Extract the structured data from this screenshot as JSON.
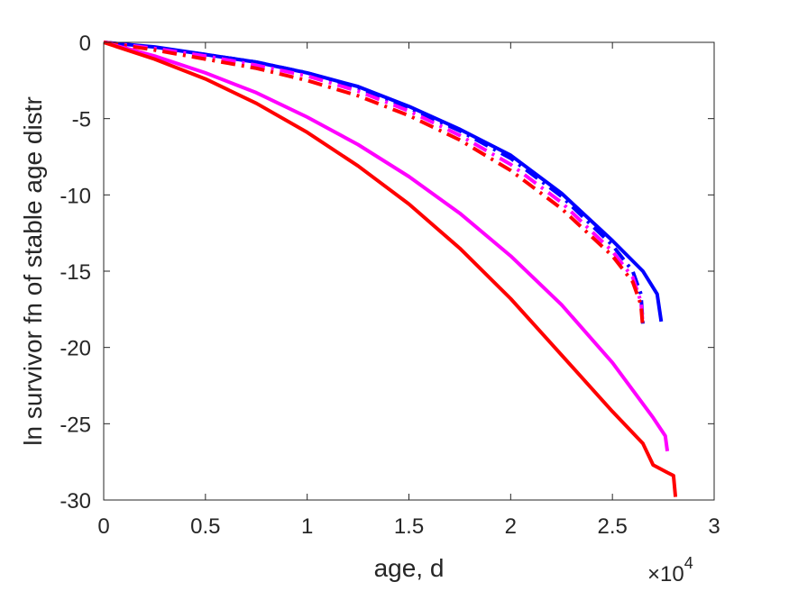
{
  "chart_data": {
    "type": "line",
    "xlabel": "age, d",
    "ylabel": "ln survivor fn of stable age distr",
    "x_multiplier": {
      "base": "×10",
      "exponent": "4"
    },
    "xlim": [
      0,
      3
    ],
    "ylim": [
      -30,
      0
    ],
    "xticks": [
      "0",
      "0.5",
      "1",
      "1.5",
      "2",
      "2.5",
      "3"
    ],
    "yticks": [
      "0",
      "-5",
      "-10",
      "-15",
      "-20",
      "-25",
      "-30"
    ],
    "grid": false,
    "legend": "none",
    "series": [
      {
        "color": "#0000ff",
        "style": "solid",
        "points": [
          [
            0,
            0
          ],
          [
            0.25,
            -0.3
          ],
          [
            0.5,
            -0.8
          ],
          [
            0.75,
            -1.3
          ],
          [
            1.0,
            -2.0
          ],
          [
            1.25,
            -2.9
          ],
          [
            1.5,
            -4.2
          ],
          [
            1.75,
            -5.7
          ],
          [
            2.0,
            -7.4
          ],
          [
            2.25,
            -9.9
          ],
          [
            2.5,
            -13.0
          ],
          [
            2.65,
            -15.0
          ],
          [
            2.72,
            -16.5
          ],
          [
            2.74,
            -18.3
          ]
        ]
      },
      {
        "color": "#0000ff",
        "style": "dashdot",
        "points": [
          [
            0,
            0
          ],
          [
            0.25,
            -0.35
          ],
          [
            0.5,
            -0.8
          ],
          [
            0.75,
            -1.3
          ],
          [
            1.0,
            -2.0
          ],
          [
            1.25,
            -3.0
          ],
          [
            1.5,
            -4.3
          ],
          [
            1.75,
            -5.8
          ],
          [
            2.0,
            -7.6
          ],
          [
            2.25,
            -10.1
          ],
          [
            2.5,
            -13.3
          ],
          [
            2.6,
            -15.0
          ],
          [
            2.64,
            -16.5
          ],
          [
            2.65,
            -18.5
          ]
        ]
      },
      {
        "color": "#ff00ff",
        "style": "dashdot",
        "points": [
          [
            0,
            0
          ],
          [
            0.25,
            -0.4
          ],
          [
            0.5,
            -0.9
          ],
          [
            0.75,
            -1.5
          ],
          [
            1.0,
            -2.2
          ],
          [
            1.25,
            -3.2
          ],
          [
            1.5,
            -4.5
          ],
          [
            1.75,
            -6.1
          ],
          [
            2.0,
            -8.0
          ],
          [
            2.25,
            -10.5
          ],
          [
            2.5,
            -13.7
          ],
          [
            2.6,
            -15.4
          ],
          [
            2.64,
            -17.0
          ],
          [
            2.65,
            -18.5
          ]
        ]
      },
      {
        "color": "#ff0000",
        "style": "dashdot",
        "points": [
          [
            0,
            0
          ],
          [
            0.25,
            -0.5
          ],
          [
            0.5,
            -1.1
          ],
          [
            0.75,
            -1.7
          ],
          [
            1.0,
            -2.5
          ],
          [
            1.25,
            -3.5
          ],
          [
            1.5,
            -4.8
          ],
          [
            1.75,
            -6.4
          ],
          [
            2.0,
            -8.4
          ],
          [
            2.25,
            -10.9
          ],
          [
            2.5,
            -14.0
          ],
          [
            2.6,
            -15.7
          ],
          [
            2.64,
            -17.2
          ],
          [
            2.65,
            -18.8
          ]
        ]
      },
      {
        "color": "#ff00ff",
        "style": "solid",
        "points": [
          [
            0,
            0
          ],
          [
            0.25,
            -0.9
          ],
          [
            0.5,
            -2.0
          ],
          [
            0.75,
            -3.3
          ],
          [
            1.0,
            -4.9
          ],
          [
            1.25,
            -6.7
          ],
          [
            1.5,
            -8.8
          ],
          [
            1.75,
            -11.2
          ],
          [
            2.0,
            -14.0
          ],
          [
            2.25,
            -17.2
          ],
          [
            2.5,
            -21.0
          ],
          [
            2.7,
            -24.6
          ],
          [
            2.76,
            -25.8
          ],
          [
            2.77,
            -26.8
          ]
        ]
      },
      {
        "color": "#ff0000",
        "style": "solid",
        "points": [
          [
            0,
            0
          ],
          [
            0.25,
            -1.1
          ],
          [
            0.5,
            -2.4
          ],
          [
            0.75,
            -4.0
          ],
          [
            1.0,
            -5.9
          ],
          [
            1.25,
            -8.1
          ],
          [
            1.5,
            -10.6
          ],
          [
            1.75,
            -13.5
          ],
          [
            2.0,
            -16.8
          ],
          [
            2.25,
            -20.5
          ],
          [
            2.5,
            -24.2
          ],
          [
            2.65,
            -26.3
          ],
          [
            2.7,
            -27.7
          ],
          [
            2.77,
            -28.2
          ],
          [
            2.8,
            -28.4
          ],
          [
            2.81,
            -29.8
          ]
        ]
      }
    ]
  }
}
